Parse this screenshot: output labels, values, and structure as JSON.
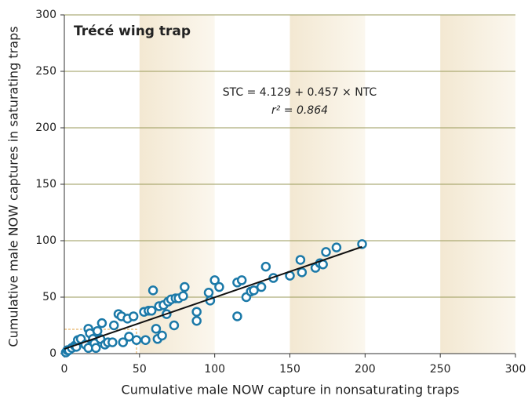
{
  "chart_data": {
    "type": "scatter",
    "title": "Trécé wing trap",
    "x_label": "Cumulative male NOW capture in nonsaturating traps",
    "y_label": "Cumulative male NOW captures in saturating traps",
    "annotations": [
      "STC = 4.129 + 0.457 × NTC",
      "r² = 0.864"
    ],
    "regression": {
      "intercept": 4.129,
      "slope": 0.457,
      "xlim": [
        0,
        198
      ]
    },
    "color": "#1b79a8",
    "line_color": "#111111",
    "grid": true,
    "xlim": [
      0,
      300
    ],
    "ylim": [
      0,
      300
    ],
    "xticks": [
      0,
      50,
      100,
      150,
      200,
      250,
      300
    ],
    "yticks": [
      0,
      50,
      100,
      150,
      200,
      250,
      300
    ],
    "x": [
      1,
      2,
      3,
      5,
      7,
      8,
      9,
      11,
      14,
      16,
      16,
      17,
      19,
      20,
      21,
      22,
      24,
      25,
      27,
      29,
      32,
      33,
      36,
      38,
      39,
      42,
      43,
      46,
      48,
      53,
      54,
      56,
      58,
      59,
      61,
      62,
      63,
      65,
      66,
      68,
      69,
      71,
      73,
      74,
      76,
      79,
      80,
      88,
      88,
      96,
      97,
      100,
      103,
      115,
      115,
      118,
      121,
      124,
      126,
      131,
      134,
      139,
      150,
      157,
      158,
      167,
      170,
      172,
      174,
      181,
      198
    ],
    "values": [
      1,
      3,
      3,
      5,
      7,
      6,
      12,
      13,
      8,
      22,
      5,
      18,
      13,
      9,
      5,
      20,
      13,
      27,
      8,
      10,
      10,
      25,
      35,
      33,
      10,
      31,
      15,
      33,
      12,
      37,
      12,
      38,
      38,
      56,
      22,
      13,
      42,
      16,
      43,
      35,
      46,
      48,
      25,
      49,
      49,
      51,
      59,
      37,
      29,
      54,
      47,
      65,
      59,
      33,
      63,
      65,
      50,
      55,
      56,
      59,
      77,
      67,
      69,
      83,
      72,
      76,
      80,
      79,
      90,
      94,
      97
    ]
  }
}
